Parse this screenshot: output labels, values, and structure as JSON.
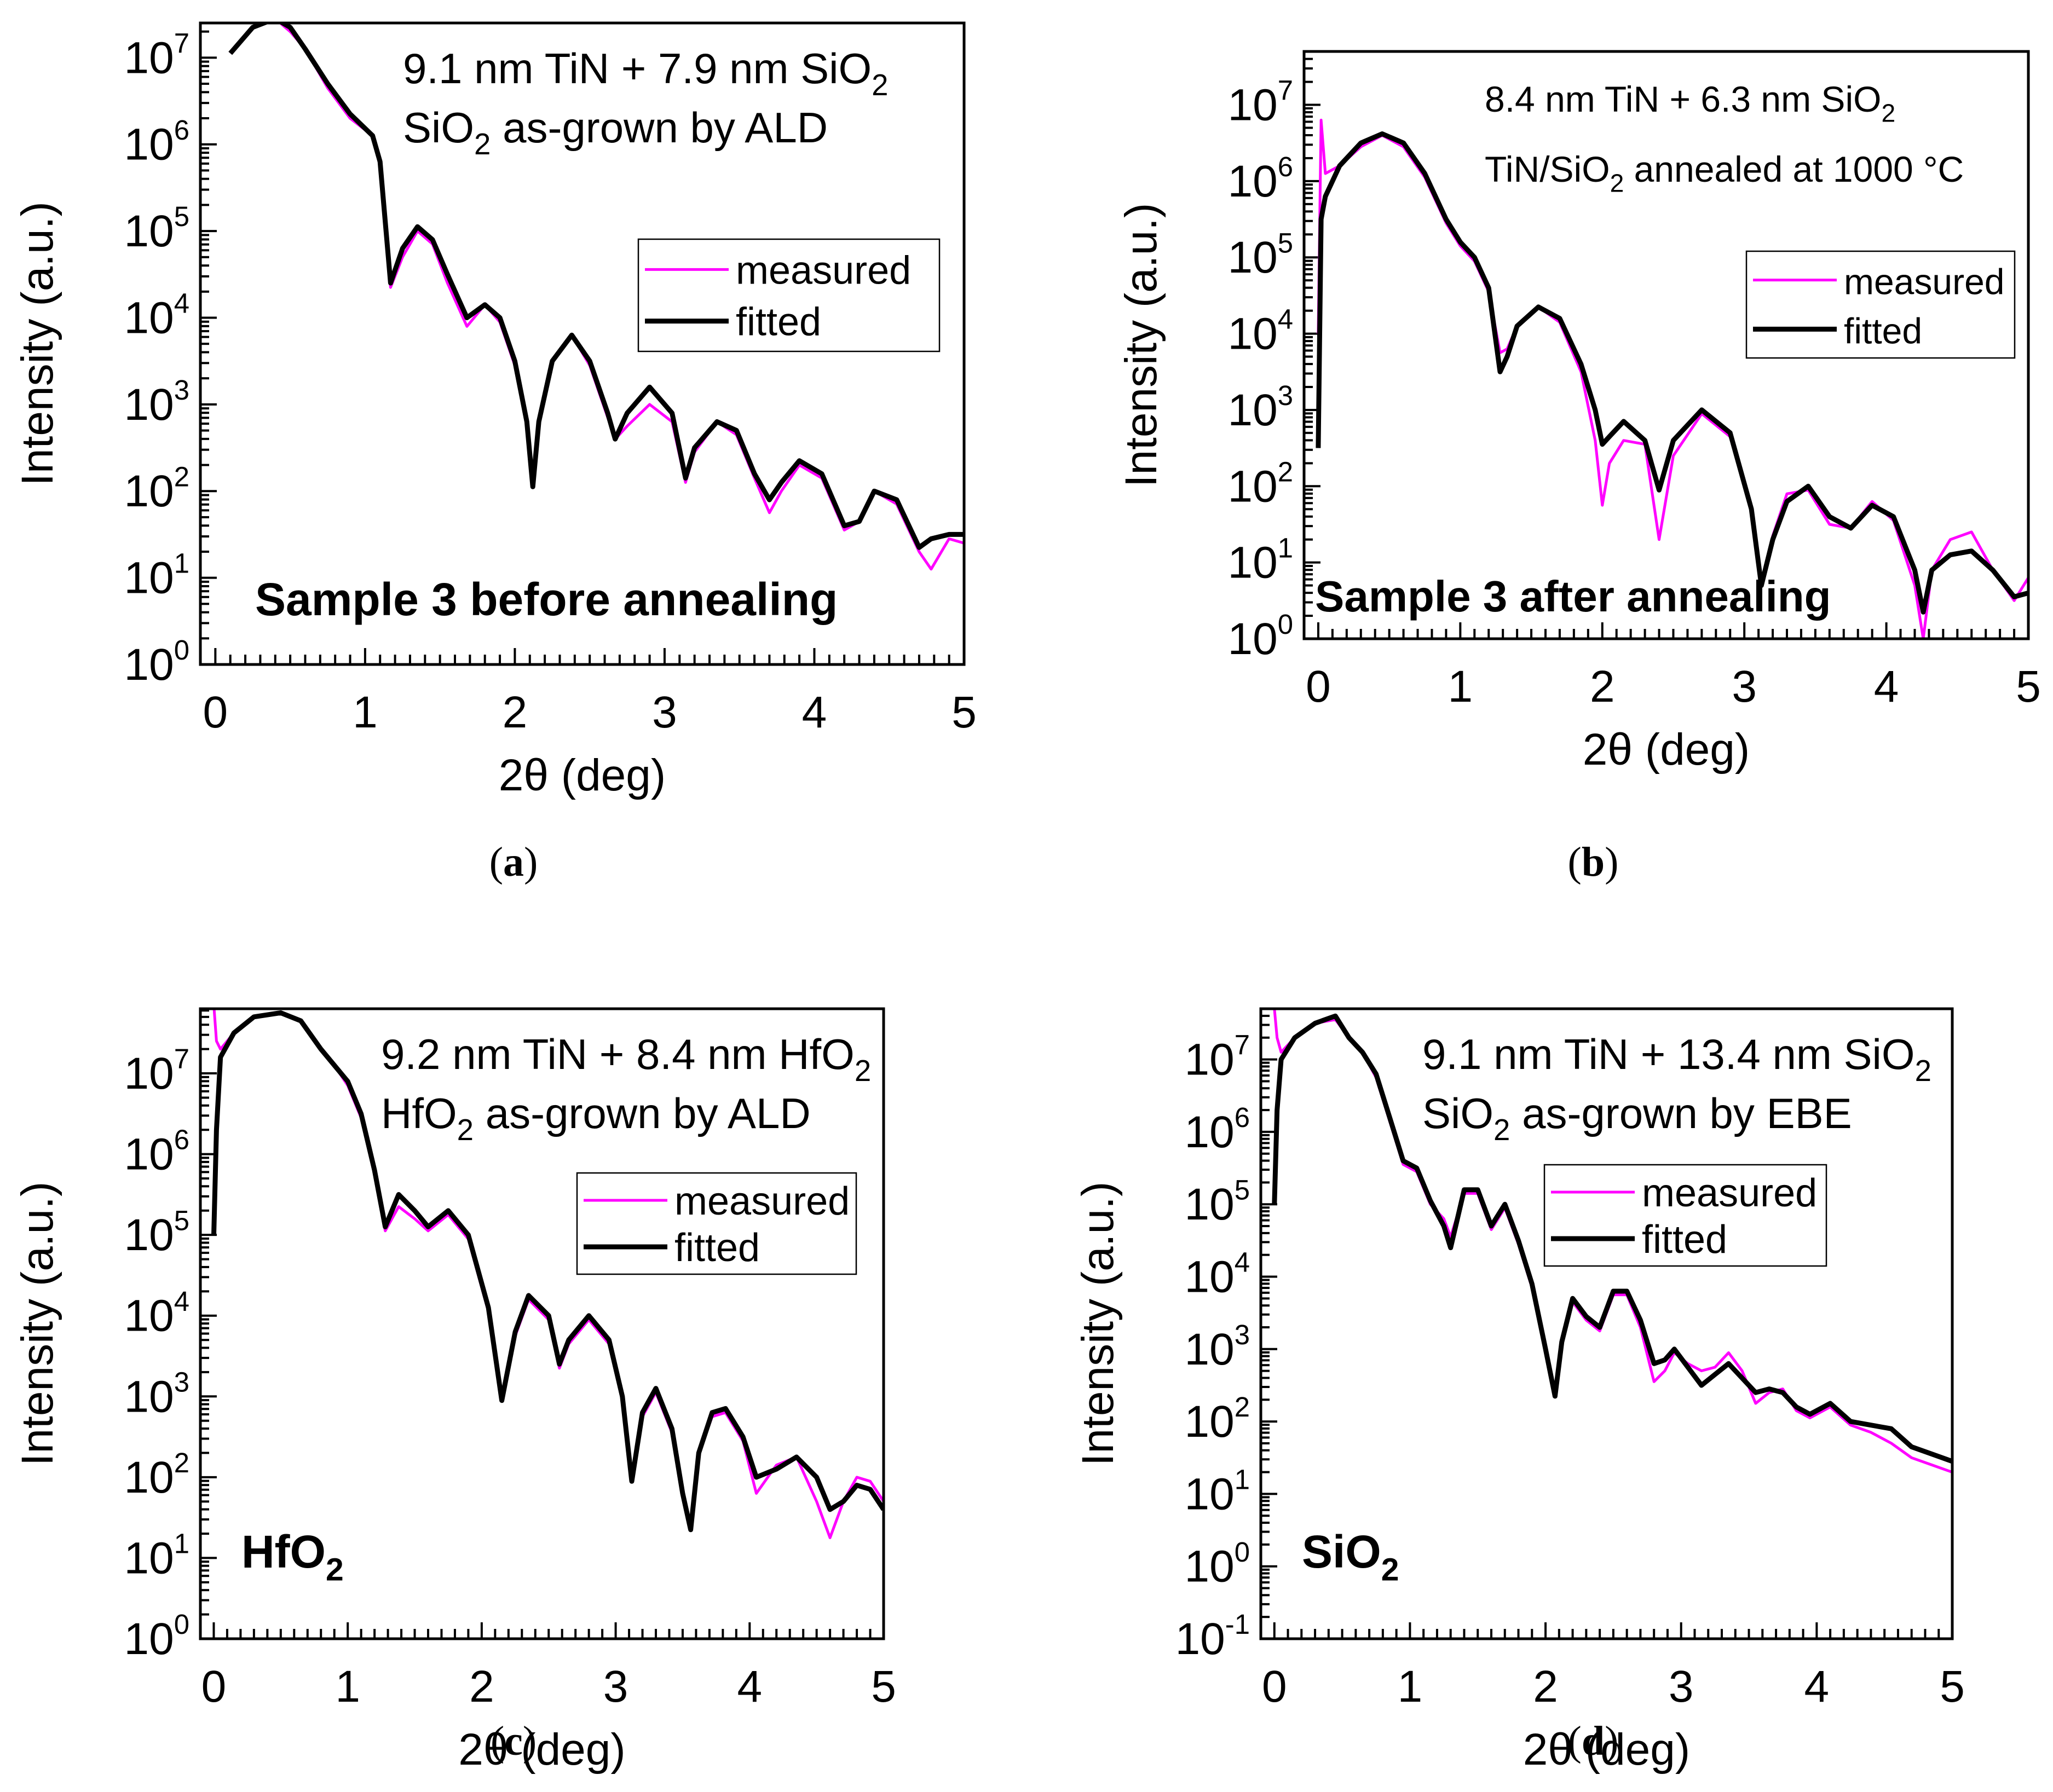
{
  "figure": {
    "legend_measured": "measured",
    "legend_fitted": "fitted",
    "colors": {
      "measured": "#ff00ff",
      "fitted": "#000000",
      "axis": "#000000"
    }
  },
  "chart_data": [
    {
      "type": "line",
      "panel": "a",
      "caption_letter": "a",
      "xlabel": "2θ (deg)",
      "ylabel": "Intensity (a.u.)",
      "yscale": "log",
      "xlim": [
        -0.1,
        5
      ],
      "ylim_log10": [
        0,
        7.4
      ],
      "xticks": [
        0,
        1,
        2,
        3,
        4,
        5
      ],
      "yticks_exp": [
        0,
        1,
        2,
        3,
        4,
        5,
        6,
        7
      ],
      "annotation_lines": [
        {
          "main": "9.1 nm TiN + 7.9 nm SiO",
          "sub": "2",
          "after": ""
        },
        {
          "main": "SiO",
          "sub": "2",
          "after": " as-grown by ALD"
        }
      ],
      "sample_label": {
        "main": "Sample 3 before annealing",
        "sub": ""
      },
      "legend_position": "upper-right",
      "series": [
        {
          "name": "fitted",
          "x": [
            0.1,
            0.25,
            0.4,
            0.5,
            0.6,
            0.75,
            0.9,
            1.05,
            1.1,
            1.17,
            1.25,
            1.35,
            1.45,
            1.55,
            1.68,
            1.8,
            1.9,
            2.0,
            2.08,
            2.12,
            2.16,
            2.25,
            2.38,
            2.5,
            2.62,
            2.67,
            2.75,
            2.9,
            3.05,
            3.14,
            3.2,
            3.35,
            3.48,
            3.6,
            3.7,
            3.78,
            3.9,
            4.05,
            4.2,
            4.3,
            4.4,
            4.55,
            4.7,
            4.78,
            4.9,
            5.0
          ],
          "log10y": [
            7.05,
            7.35,
            7.45,
            7.35,
            7.1,
            6.7,
            6.35,
            6.1,
            5.8,
            4.4,
            4.8,
            5.05,
            4.9,
            4.5,
            4.0,
            4.15,
            4.0,
            3.5,
            2.8,
            2.05,
            2.8,
            3.5,
            3.8,
            3.5,
            2.9,
            2.6,
            2.9,
            3.2,
            2.9,
            2.15,
            2.5,
            2.8,
            2.7,
            2.2,
            1.9,
            2.1,
            2.35,
            2.2,
            1.6,
            1.65,
            2.0,
            1.9,
            1.35,
            1.45,
            1.5,
            1.5
          ]
        },
        {
          "name": "measured",
          "x": [
            0.1,
            0.25,
            0.4,
            0.5,
            0.6,
            0.75,
            0.9,
            1.05,
            1.1,
            1.17,
            1.25,
            1.35,
            1.45,
            1.55,
            1.68,
            1.8,
            1.9,
            2.0,
            2.08,
            2.12,
            2.16,
            2.25,
            2.38,
            2.5,
            2.62,
            2.67,
            2.75,
            2.9,
            3.05,
            3.14,
            3.2,
            3.35,
            3.48,
            3.6,
            3.7,
            3.78,
            3.9,
            4.05,
            4.2,
            4.3,
            4.4,
            4.55,
            4.7,
            4.78,
            4.9,
            5.0
          ],
          "log10y": [
            7.05,
            7.35,
            7.45,
            7.3,
            7.1,
            6.65,
            6.3,
            6.1,
            5.75,
            4.35,
            4.7,
            5.0,
            4.85,
            4.4,
            3.9,
            4.15,
            3.95,
            3.45,
            2.75,
            2.05,
            2.75,
            3.5,
            3.8,
            3.45,
            2.85,
            2.6,
            2.75,
            3.0,
            2.8,
            2.1,
            2.45,
            2.8,
            2.65,
            2.15,
            1.75,
            2.0,
            2.3,
            2.15,
            1.55,
            1.65,
            2.0,
            1.85,
            1.3,
            1.1,
            1.45,
            1.4
          ]
        }
      ]
    },
    {
      "type": "line",
      "panel": "b",
      "caption_letter": "b",
      "xlabel": "2θ (deg)",
      "ylabel": "Intensity (a.u.)",
      "yscale": "log",
      "xlim": [
        -0.1,
        5
      ],
      "ylim_log10": [
        0,
        7.7
      ],
      "xticks": [
        0,
        1,
        2,
        3,
        4,
        5
      ],
      "yticks_exp": [
        0,
        1,
        2,
        3,
        4,
        5,
        6,
        7
      ],
      "annotation_lines": [
        {
          "main": "8.4 nm TiN + 6.3 nm SiO",
          "sub": "2",
          "after": ""
        },
        {
          "main": "TiN/SiO",
          "sub": "2",
          "after": " annealed at 1000 °C"
        }
      ],
      "sample_label": {
        "main": "Sample 3 after annealing",
        "sub": ""
      },
      "legend_position": "upper-right",
      "series": [
        {
          "name": "fitted",
          "x": [
            0.0,
            0.02,
            0.05,
            0.15,
            0.3,
            0.45,
            0.6,
            0.75,
            0.9,
            1.0,
            1.1,
            1.2,
            1.28,
            1.33,
            1.4,
            1.55,
            1.7,
            1.85,
            1.95,
            2.0,
            2.05,
            2.15,
            2.3,
            2.4,
            2.5,
            2.7,
            2.9,
            3.05,
            3.12,
            3.2,
            3.3,
            3.45,
            3.6,
            3.75,
            3.9,
            4.05,
            4.2,
            4.26,
            4.32,
            4.45,
            4.6,
            4.75,
            4.9,
            5.0
          ],
          "log10y": [
            2.5,
            5.5,
            5.8,
            6.2,
            6.5,
            6.62,
            6.5,
            6.1,
            5.5,
            5.2,
            5.0,
            4.6,
            3.5,
            3.7,
            4.1,
            4.35,
            4.2,
            3.6,
            3.0,
            2.55,
            2.65,
            2.85,
            2.6,
            1.95,
            2.6,
            3.0,
            2.7,
            1.7,
            0.7,
            1.3,
            1.8,
            2.0,
            1.6,
            1.45,
            1.75,
            1.6,
            0.9,
            0.35,
            0.9,
            1.1,
            1.15,
            0.9,
            0.55,
            0.6
          ]
        },
        {
          "name": "measured",
          "x": [
            0.0,
            0.02,
            0.05,
            0.15,
            0.3,
            0.45,
            0.6,
            0.75,
            0.9,
            1.0,
            1.1,
            1.2,
            1.28,
            1.33,
            1.4,
            1.55,
            1.7,
            1.85,
            1.95,
            2.0,
            2.05,
            2.15,
            2.3,
            2.4,
            2.5,
            2.7,
            2.9,
            3.05,
            3.12,
            3.2,
            3.3,
            3.45,
            3.6,
            3.75,
            3.9,
            4.05,
            4.2,
            4.26,
            4.32,
            4.45,
            4.6,
            4.75,
            4.9,
            5.0
          ],
          "log10y": [
            4.0,
            6.8,
            6.1,
            6.2,
            6.45,
            6.6,
            6.45,
            6.05,
            5.45,
            5.15,
            4.95,
            4.55,
            3.75,
            3.8,
            4.1,
            4.35,
            4.15,
            3.5,
            2.6,
            1.75,
            2.3,
            2.6,
            2.55,
            1.3,
            2.4,
            2.95,
            2.65,
            1.7,
            0.75,
            1.35,
            1.9,
            1.95,
            1.5,
            1.45,
            1.8,
            1.55,
            0.7,
            0.0,
            0.9,
            1.3,
            1.4,
            0.9,
            0.5,
            0.8
          ]
        }
      ]
    },
    {
      "type": "line",
      "panel": "c",
      "caption_letter": "c",
      "xlabel": "2θ (deg)",
      "ylabel": "Intensity (a.u.)",
      "yscale": "log",
      "xlim": [
        -0.1,
        5
      ],
      "ylim_log10": [
        0,
        7.8
      ],
      "xticks": [
        0,
        1,
        2,
        3,
        4,
        5
      ],
      "yticks_exp": [
        0,
        1,
        2,
        3,
        4,
        5,
        6,
        7
      ],
      "annotation_lines": [
        {
          "main": "9.2 nm TiN + 8.4 nm HfO",
          "sub": "2",
          "after": ""
        },
        {
          "main": "HfO",
          "sub": "2",
          "after": " as-grown by ALD"
        }
      ],
      "sample_label": {
        "main": "HfO",
        "sub": "2"
      },
      "legend_position": "upper-right",
      "series": [
        {
          "name": "fitted",
          "x": [
            0.0,
            0.02,
            0.05,
            0.15,
            0.3,
            0.5,
            0.65,
            0.8,
            0.9,
            1.0,
            1.1,
            1.2,
            1.28,
            1.38,
            1.5,
            1.6,
            1.75,
            1.9,
            2.05,
            2.15,
            2.25,
            2.35,
            2.5,
            2.58,
            2.65,
            2.8,
            2.95,
            3.05,
            3.12,
            3.2,
            3.3,
            3.42,
            3.5,
            3.56,
            3.62,
            3.72,
            3.82,
            3.95,
            4.05,
            4.2,
            4.35,
            4.5,
            4.6,
            4.7,
            4.8,
            4.9,
            5.0
          ],
          "log10y": [
            5.0,
            6.3,
            7.2,
            7.5,
            7.7,
            7.75,
            7.65,
            7.3,
            7.1,
            6.9,
            6.5,
            5.8,
            5.1,
            5.5,
            5.3,
            5.1,
            5.3,
            5.0,
            4.1,
            2.95,
            3.8,
            4.25,
            4.0,
            3.4,
            3.7,
            4.0,
            3.7,
            3.0,
            1.95,
            2.8,
            3.1,
            2.6,
            1.8,
            1.35,
            2.3,
            2.8,
            2.85,
            2.5,
            2.0,
            2.1,
            2.25,
            2.0,
            1.6,
            1.7,
            1.9,
            1.85,
            1.6
          ]
        },
        {
          "name": "measured",
          "x": [
            0.0,
            0.02,
            0.05,
            0.15,
            0.3,
            0.5,
            0.65,
            0.8,
            0.9,
            1.0,
            1.1,
            1.2,
            1.28,
            1.38,
            1.5,
            1.6,
            1.75,
            1.9,
            2.05,
            2.15,
            2.25,
            2.35,
            2.5,
            2.58,
            2.65,
            2.8,
            2.95,
            3.05,
            3.12,
            3.2,
            3.3,
            3.42,
            3.5,
            3.56,
            3.62,
            3.72,
            3.82,
            3.95,
            4.05,
            4.2,
            4.35,
            4.5,
            4.6,
            4.7,
            4.8,
            4.9,
            5.0
          ],
          "log10y": [
            7.85,
            7.4,
            7.3,
            7.5,
            7.7,
            7.75,
            7.65,
            7.3,
            7.1,
            6.85,
            6.45,
            5.75,
            5.05,
            5.35,
            5.2,
            5.05,
            5.25,
            4.95,
            4.05,
            2.95,
            3.75,
            4.2,
            3.95,
            3.35,
            3.65,
            3.95,
            3.65,
            2.95,
            1.95,
            2.75,
            3.05,
            2.55,
            1.8,
            1.35,
            2.3,
            2.75,
            2.8,
            2.45,
            1.8,
            2.15,
            2.25,
            1.7,
            1.25,
            1.7,
            2.0,
            1.95,
            1.7
          ]
        }
      ]
    },
    {
      "type": "line",
      "panel": "d",
      "caption_letter": "d",
      "xlabel": "2θ (deg)",
      "ylabel": "Intensity (a.u.)",
      "yscale": "log",
      "xlim": [
        -0.1,
        5
      ],
      "ylim_log10": [
        -1,
        7.7
      ],
      "xticks": [
        0,
        1,
        2,
        3,
        4,
        5
      ],
      "yticks_exp": [
        -1,
        0,
        1,
        2,
        3,
        4,
        5,
        6,
        7
      ],
      "annotation_lines": [
        {
          "main": "9.1 nm TiN + 13.4 nm SiO",
          "sub": "2",
          "after": ""
        },
        {
          "main": "SiO",
          "sub": "2",
          "after": " as-grown by EBE"
        }
      ],
      "sample_label": {
        "main": "SiO",
        "sub": "2"
      },
      "legend_position": "upper-right",
      "series": [
        {
          "name": "fitted",
          "x": [
            0.0,
            0.02,
            0.05,
            0.15,
            0.3,
            0.45,
            0.55,
            0.65,
            0.75,
            0.85,
            0.95,
            1.05,
            1.15,
            1.25,
            1.3,
            1.4,
            1.5,
            1.6,
            1.7,
            1.8,
            1.9,
            2.0,
            2.07,
            2.12,
            2.2,
            2.3,
            2.4,
            2.5,
            2.6,
            2.7,
            2.8,
            2.88,
            2.95,
            3.05,
            3.15,
            3.25,
            3.35,
            3.45,
            3.55,
            3.65,
            3.75,
            3.85,
            3.95,
            4.1,
            4.25,
            4.4,
            4.55,
            4.7,
            4.85,
            5.0
          ],
          "log10y": [
            5.0,
            6.3,
            7.0,
            7.3,
            7.5,
            7.6,
            7.3,
            7.1,
            6.8,
            6.2,
            5.6,
            5.5,
            5.05,
            4.7,
            4.4,
            5.2,
            5.2,
            4.7,
            5.0,
            4.5,
            3.9,
            3.0,
            2.35,
            3.1,
            3.7,
            3.45,
            3.3,
            3.8,
            3.8,
            3.4,
            2.8,
            2.85,
            3.0,
            2.75,
            2.5,
            2.65,
            2.8,
            2.6,
            2.4,
            2.45,
            2.4,
            2.2,
            2.1,
            2.25,
            2.0,
            1.95,
            1.9,
            1.65,
            1.55,
            1.45
          ]
        },
        {
          "name": "measured",
          "x": [
            0.0,
            0.02,
            0.05,
            0.15,
            0.3,
            0.45,
            0.55,
            0.65,
            0.75,
            0.85,
            0.95,
            1.05,
            1.15,
            1.25,
            1.3,
            1.4,
            1.5,
            1.6,
            1.7,
            1.8,
            1.9,
            2.0,
            2.07,
            2.12,
            2.2,
            2.3,
            2.4,
            2.5,
            2.6,
            2.7,
            2.8,
            2.88,
            2.95,
            3.05,
            3.15,
            3.25,
            3.35,
            3.45,
            3.55,
            3.65,
            3.75,
            3.85,
            3.95,
            4.1,
            4.25,
            4.4,
            4.55,
            4.7,
            4.85,
            5.0
          ],
          "log10y": [
            7.7,
            7.3,
            7.1,
            7.3,
            7.5,
            7.55,
            7.3,
            7.1,
            6.75,
            6.15,
            5.55,
            5.45,
            5.0,
            4.8,
            4.55,
            5.15,
            5.15,
            4.65,
            4.95,
            4.45,
            3.85,
            2.95,
            2.35,
            3.1,
            3.65,
            3.4,
            3.25,
            3.75,
            3.75,
            3.3,
            2.55,
            2.7,
            2.95,
            2.8,
            2.7,
            2.75,
            2.95,
            2.7,
            2.25,
            2.4,
            2.45,
            2.15,
            2.05,
            2.2,
            1.95,
            1.85,
            1.7,
            1.5,
            1.4,
            1.3
          ]
        }
      ]
    }
  ]
}
